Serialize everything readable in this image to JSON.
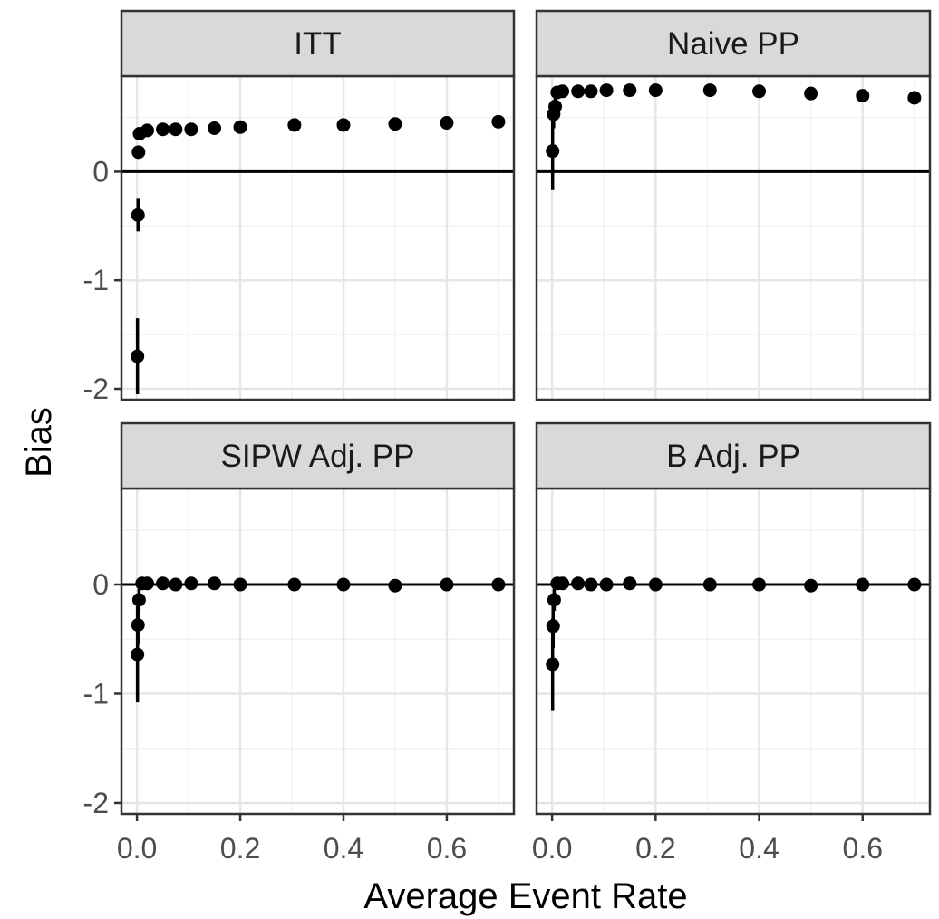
{
  "chart_data": {
    "type": "scatter",
    "facet_layout": "2x2",
    "xlabel": "Average Event Rate",
    "ylabel": "Bias",
    "xlim": [
      -0.03,
      0.73
    ],
    "ylim": [
      -2.1,
      0.88
    ],
    "x_ticks": [
      0.0,
      0.2,
      0.4,
      0.6
    ],
    "x_tick_labels": [
      "0.0",
      "0.2",
      "0.4",
      "0.6"
    ],
    "y_ticks": [
      -2,
      -1,
      0
    ],
    "y_tick_labels": [
      "-2",
      "-1",
      "0"
    ],
    "hline_y": 0,
    "grid": true,
    "point_color": "#000000",
    "panels": [
      {
        "title": "ITT",
        "points": [
          {
            "x": 0.001,
            "y": -1.7,
            "lo": -2.05,
            "hi": -1.35
          },
          {
            "x": 0.002,
            "y": -0.4,
            "lo": -0.55,
            "hi": -0.25
          },
          {
            "x": 0.003,
            "y": 0.18,
            "lo": 0.13,
            "hi": 0.23
          },
          {
            "x": 0.005,
            "y": 0.35,
            "lo": 0.32,
            "hi": 0.38
          },
          {
            "x": 0.02,
            "y": 0.38,
            "lo": 0.36,
            "hi": 0.4
          },
          {
            "x": 0.05,
            "y": 0.39,
            "lo": 0.37,
            "hi": 0.41
          },
          {
            "x": 0.075,
            "y": 0.39,
            "lo": 0.37,
            "hi": 0.41
          },
          {
            "x": 0.105,
            "y": 0.39,
            "lo": 0.37,
            "hi": 0.41
          },
          {
            "x": 0.15,
            "y": 0.4,
            "lo": 0.38,
            "hi": 0.42
          },
          {
            "x": 0.2,
            "y": 0.41,
            "lo": 0.39,
            "hi": 0.43
          },
          {
            "x": 0.305,
            "y": 0.43,
            "lo": 0.41,
            "hi": 0.45
          },
          {
            "x": 0.4,
            "y": 0.43,
            "lo": 0.41,
            "hi": 0.45
          },
          {
            "x": 0.5,
            "y": 0.44,
            "lo": 0.42,
            "hi": 0.46
          },
          {
            "x": 0.6,
            "y": 0.45,
            "lo": 0.43,
            "hi": 0.47
          },
          {
            "x": 0.7,
            "y": 0.46,
            "lo": 0.44,
            "hi": 0.48
          }
        ]
      },
      {
        "title": "Naive PP",
        "points": [
          {
            "x": 0.001,
            "y": 0.19,
            "lo": -0.17,
            "hi": 0.55
          },
          {
            "x": 0.003,
            "y": 0.53,
            "lo": 0.4,
            "hi": 0.66
          },
          {
            "x": 0.006,
            "y": 0.6,
            "lo": 0.52,
            "hi": 0.68
          },
          {
            "x": 0.01,
            "y": 0.73,
            "lo": 0.7,
            "hi": 0.76
          },
          {
            "x": 0.02,
            "y": 0.74,
            "lo": 0.72,
            "hi": 0.76
          },
          {
            "x": 0.05,
            "y": 0.74,
            "lo": 0.72,
            "hi": 0.76
          },
          {
            "x": 0.075,
            "y": 0.74,
            "lo": 0.72,
            "hi": 0.76
          },
          {
            "x": 0.105,
            "y": 0.75,
            "lo": 0.73,
            "hi": 0.77
          },
          {
            "x": 0.15,
            "y": 0.75,
            "lo": 0.73,
            "hi": 0.77
          },
          {
            "x": 0.2,
            "y": 0.75,
            "lo": 0.73,
            "hi": 0.77
          },
          {
            "x": 0.305,
            "y": 0.75,
            "lo": 0.73,
            "hi": 0.77
          },
          {
            "x": 0.4,
            "y": 0.74,
            "lo": 0.72,
            "hi": 0.76
          },
          {
            "x": 0.5,
            "y": 0.72,
            "lo": 0.7,
            "hi": 0.74
          },
          {
            "x": 0.6,
            "y": 0.7,
            "lo": 0.68,
            "hi": 0.72
          },
          {
            "x": 0.7,
            "y": 0.68,
            "lo": 0.66,
            "hi": 0.7
          }
        ]
      },
      {
        "title": "SIPW Adj. PP",
        "points": [
          {
            "x": 0.001,
            "y": -0.64,
            "lo": -1.08,
            "hi": -0.2
          },
          {
            "x": 0.002,
            "y": -0.37,
            "lo": -0.55,
            "hi": -0.19
          },
          {
            "x": 0.004,
            "y": -0.14,
            "lo": -0.24,
            "hi": -0.04
          },
          {
            "x": 0.01,
            "y": 0.01,
            "lo": -0.01,
            "hi": 0.03
          },
          {
            "x": 0.02,
            "y": 0.01,
            "lo": -0.01,
            "hi": 0.03
          },
          {
            "x": 0.05,
            "y": 0.01,
            "lo": -0.01,
            "hi": 0.03
          },
          {
            "x": 0.075,
            "y": 0.0,
            "lo": -0.02,
            "hi": 0.02
          },
          {
            "x": 0.105,
            "y": 0.01,
            "lo": -0.01,
            "hi": 0.03
          },
          {
            "x": 0.15,
            "y": 0.01,
            "lo": -0.01,
            "hi": 0.03
          },
          {
            "x": 0.2,
            "y": 0.0,
            "lo": -0.02,
            "hi": 0.02
          },
          {
            "x": 0.305,
            "y": 0.0,
            "lo": -0.02,
            "hi": 0.02
          },
          {
            "x": 0.4,
            "y": 0.0,
            "lo": -0.02,
            "hi": 0.02
          },
          {
            "x": 0.5,
            "y": -0.01,
            "lo": -0.03,
            "hi": 0.01
          },
          {
            "x": 0.6,
            "y": 0.0,
            "lo": -0.02,
            "hi": 0.02
          },
          {
            "x": 0.7,
            "y": 0.0,
            "lo": -0.02,
            "hi": 0.02
          }
        ]
      },
      {
        "title": "B Adj. PP",
        "points": [
          {
            "x": 0.001,
            "y": -0.73,
            "lo": -1.15,
            "hi": -0.31
          },
          {
            "x": 0.002,
            "y": -0.38,
            "lo": -0.58,
            "hi": -0.18
          },
          {
            "x": 0.004,
            "y": -0.14,
            "lo": -0.24,
            "hi": -0.04
          },
          {
            "x": 0.01,
            "y": 0.01,
            "lo": -0.01,
            "hi": 0.03
          },
          {
            "x": 0.02,
            "y": 0.01,
            "lo": -0.01,
            "hi": 0.03
          },
          {
            "x": 0.05,
            "y": 0.01,
            "lo": -0.01,
            "hi": 0.03
          },
          {
            "x": 0.075,
            "y": 0.0,
            "lo": -0.02,
            "hi": 0.02
          },
          {
            "x": 0.105,
            "y": 0.0,
            "lo": -0.02,
            "hi": 0.02
          },
          {
            "x": 0.15,
            "y": 0.01,
            "lo": -0.01,
            "hi": 0.03
          },
          {
            "x": 0.2,
            "y": 0.0,
            "lo": -0.02,
            "hi": 0.02
          },
          {
            "x": 0.305,
            "y": 0.0,
            "lo": -0.02,
            "hi": 0.02
          },
          {
            "x": 0.4,
            "y": 0.0,
            "lo": -0.02,
            "hi": 0.02
          },
          {
            "x": 0.5,
            "y": -0.01,
            "lo": -0.03,
            "hi": 0.01
          },
          {
            "x": 0.6,
            "y": 0.0,
            "lo": -0.02,
            "hi": 0.02
          },
          {
            "x": 0.7,
            "y": 0.0,
            "lo": -0.02,
            "hi": 0.02
          }
        ]
      }
    ]
  }
}
